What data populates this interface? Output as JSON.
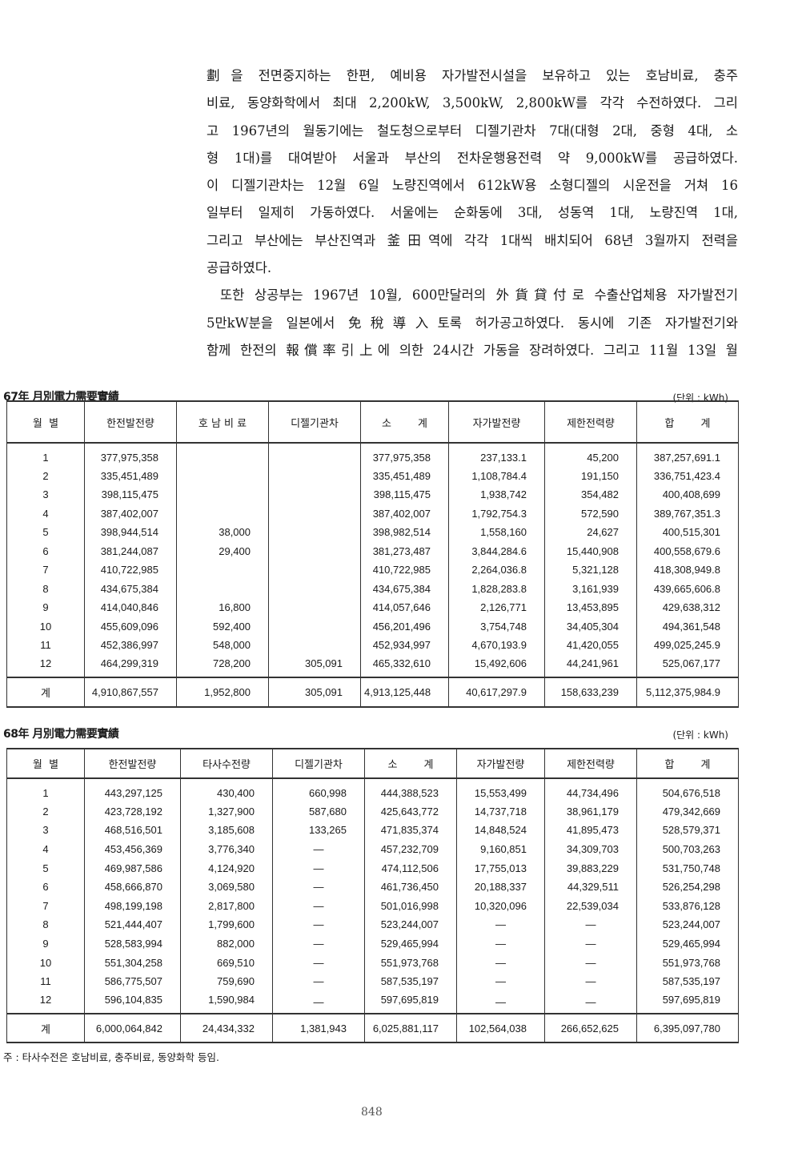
{
  "paragraph_lines": [
    "劃을 전면중지하는 한편, 예비용 자가발전시설을 보유하고 있는 호남비료, 충주",
    "비료, 동양화학에서 최대 2,200kW, 3,500kW, 2,800kW를 각각 수전하였다. 그리",
    "고 1967년의 월동기에는 철도청으로부터 디젤기관차 7대(대형 2대, 중형 4대, 소",
    "형 1대)를 대여받아 서울과 부산의 전차운행용전력 약 9,000kW를 공급하였다.",
    "이 디젤기관차는 12월 6일 노량진역에서 612kW용 소형디젤의 시운전을 거쳐 16",
    "일부터 일제히 가동하였다. 서울에는 순화동에 3대, 성동역 1대, 노량진역 1대,",
    "그리고 부산에는 부산진역과 釜田역에 각각 1대씩 배치되어 68년 3월까지 전력을",
    "공급하였다.",
    "또한 상공부는 1967년 10월, 600만달러의 外貨貸付로 수출산업체용 자가발전기",
    "5만kW분을 일본에서 免稅導入토록 허가공고하였다. 동시에 기존 자가발전기와",
    "함께 한전의 報償率引上에 의한 24시간 가동을 장려하였다. 그리고 11월 13일 월"
  ],
  "table1": {
    "title": "67年 月別電力需要實績",
    "unit": "(단위 : kWh)",
    "headers": [
      "월  별",
      "한전발전량",
      "호 남 비 료",
      "디젤기관차",
      "소        계",
      "자가발전량",
      "제한전력량",
      "합        계"
    ],
    "rows": [
      [
        "1",
        "377,975,358",
        "",
        "",
        "377,975,358",
        "237,133.1",
        "45,200",
        "387,257,691.1"
      ],
      [
        "2",
        "335,451,489",
        "",
        "",
        "335,451,489",
        "1,108,784.4",
        "191,150",
        "336,751,423.4"
      ],
      [
        "3",
        "398,115,475",
        "",
        "",
        "398,115,475",
        "1,938,742",
        "354,482",
        "400,408,699"
      ],
      [
        "4",
        "387,402,007",
        "",
        "",
        "387,402,007",
        "1,792,754.3",
        "572,590",
        "389,767,351.3"
      ],
      [
        "5",
        "398,944,514",
        "38,000",
        "",
        "398,982,514",
        "1,558,160",
        "24,627",
        "400,515,301"
      ],
      [
        "6",
        "381,244,087",
        "29,400",
        "",
        "381,273,487",
        "3,844,284.6",
        "15,440,908",
        "400,558,679.6"
      ],
      [
        "7",
        "410,722,985",
        "",
        "",
        "410,722,985",
        "2,264,036.8",
        "5,321,128",
        "418,308,949.8"
      ],
      [
        "8",
        "434,675,384",
        "",
        "",
        "434,675,384",
        "1,828,283.8",
        "3,161,939",
        "439,665,606.8"
      ],
      [
        "9",
        "414,040,846",
        "16,800",
        "",
        "414,057,646",
        "2,126,771",
        "13,453,895",
        "429,638,312"
      ],
      [
        "10",
        "455,609,096",
        "592,400",
        "",
        "456,201,496",
        "3,754,748",
        "34,405,304",
        "494,361,548"
      ],
      [
        "11",
        "452,386,997",
        "548,000",
        "",
        "452,934,997",
        "4,670,193.9",
        "41,420,055",
        "499,025,245.9"
      ],
      [
        "12",
        "464,299,319",
        "728,200",
        "305,091",
        "465,332,610",
        "15,492,606",
        "44,241,961",
        "525,067,177"
      ]
    ],
    "total": [
      "계",
      "4,910,867,557",
      "1,952,800",
      "305,091",
      "4,913,125,448",
      "40,617,297.9",
      "158,633,239",
      "5,112,375,984.9"
    ]
  },
  "table2": {
    "title": "68年 月別電力需要實績",
    "unit": "(단위 : kWh)",
    "headers": [
      "월  별",
      "한전발전량",
      "타사수전량",
      "디젤기관차",
      "소        계",
      "자가발전량",
      "제한전력량",
      "합        계"
    ],
    "rows": [
      [
        "1",
        "443,297,125",
        "430,400",
        "660,998",
        "444,388,523",
        "15,553,499",
        "44,734,496",
        "504,676,518"
      ],
      [
        "2",
        "423,728,192",
        "1,327,900",
        "587,680",
        "425,643,772",
        "14,737,718",
        "38,961,179",
        "479,342,669"
      ],
      [
        "3",
        "468,516,501",
        "3,185,608",
        "133,265",
        "471,835,374",
        "14,848,524",
        "41,895,473",
        "528,579,371"
      ],
      [
        "4",
        "453,456,369",
        "3,776,340",
        "—",
        "457,232,709",
        "9,160,851",
        "34,309,703",
        "500,703,263"
      ],
      [
        "5",
        "469,987,586",
        "4,124,920",
        "—",
        "474,112,506",
        "17,755,013",
        "39,883,229",
        "531,750,748"
      ],
      [
        "6",
        "458,666,870",
        "3,069,580",
        "—",
        "461,736,450",
        "20,188,337",
        "44,329,511",
        "526,254,298"
      ],
      [
        "7",
        "498,199,198",
        "2,817,800",
        "—",
        "501,016,998",
        "10,320,096",
        "22,539,034",
        "533,876,128"
      ],
      [
        "8",
        "521,444,407",
        "1,799,600",
        "—",
        "523,244,007",
        "—",
        "—",
        "523,244,007"
      ],
      [
        "9",
        "528,583,994",
        "882,000",
        "—",
        "529,465,994",
        "—",
        "—",
        "529,465,994"
      ],
      [
        "10",
        "551,304,258",
        "669,510",
        "—",
        "551,973,768",
        "—",
        "—",
        "551,973,768"
      ],
      [
        "11",
        "586,775,507",
        "759,690",
        "—",
        "587,535,197",
        "—",
        "—",
        "587,535,197"
      ],
      [
        "12",
        "596,104,835",
        "1,590,984",
        "—",
        "597,695,819",
        "—",
        "—",
        "597,695,819"
      ]
    ],
    "total": [
      "계",
      "6,000,064,842",
      "24,434,332",
      "1,381,943",
      "6,025,881,117",
      "102,564,038",
      "266,652,625",
      "6,395,097,780"
    ]
  },
  "footnote": "주 : 타사수전은 호남비료, 충주비료, 동양화학 등임.",
  "page_number": "848"
}
